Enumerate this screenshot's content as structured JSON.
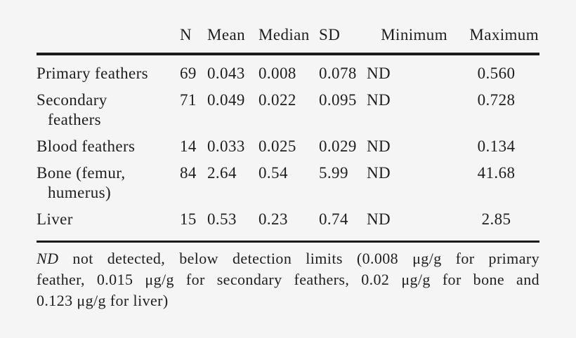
{
  "page": {
    "background_color": "#f5f5f6",
    "text_color": "#1e1e1e",
    "rule_color": "#1a1a1a"
  },
  "table": {
    "headers": [
      "N",
      "Mean",
      "Median",
      "SD",
      "Minimum",
      "Maximum"
    ],
    "rows": [
      {
        "label": "Primary feathers",
        "label_lines": [
          "Primary feathers"
        ],
        "values": [
          "69",
          "0.043",
          "0.008",
          "0.078",
          "ND",
          "0.560"
        ]
      },
      {
        "label": "Secondary feathers",
        "label_lines": [
          "Secondary",
          "feathers"
        ],
        "values": [
          "71",
          "0.049",
          "0.022",
          "0.095",
          "ND",
          "0.728"
        ]
      },
      {
        "label": "Blood feathers",
        "label_lines": [
          "Blood feathers"
        ],
        "values": [
          "14",
          "0.033",
          "0.025",
          "0.029",
          "ND",
          "0.134"
        ]
      },
      {
        "label": "Bone (femur, humerus)",
        "label_lines": [
          "Bone (femur,",
          "humerus)"
        ],
        "values": [
          "84",
          "2.64",
          "0.54",
          "5.99",
          "ND",
          "41.68"
        ]
      },
      {
        "label": "Liver",
        "label_lines": [
          "Liver"
        ],
        "values": [
          "15",
          "0.53",
          "0.23",
          "0.74",
          "ND",
          "2.85"
        ]
      }
    ]
  },
  "footnote": {
    "nd_abbrev": "ND",
    "line1_rest": "not detected, below detection limits (0.008 μg/g for primary",
    "line2": "feather, 0.015 μg/g for secondary feathers, 0.02 μg/g for bone and",
    "line3": "0.123 μg/g for liver)",
    "full_text": "ND not detected, below detection limits (0.008 μg/g for primary feather, 0.015 μg/g for secondary feathers, 0.02 μg/g for bone and 0.123 μg/g for liver)"
  }
}
